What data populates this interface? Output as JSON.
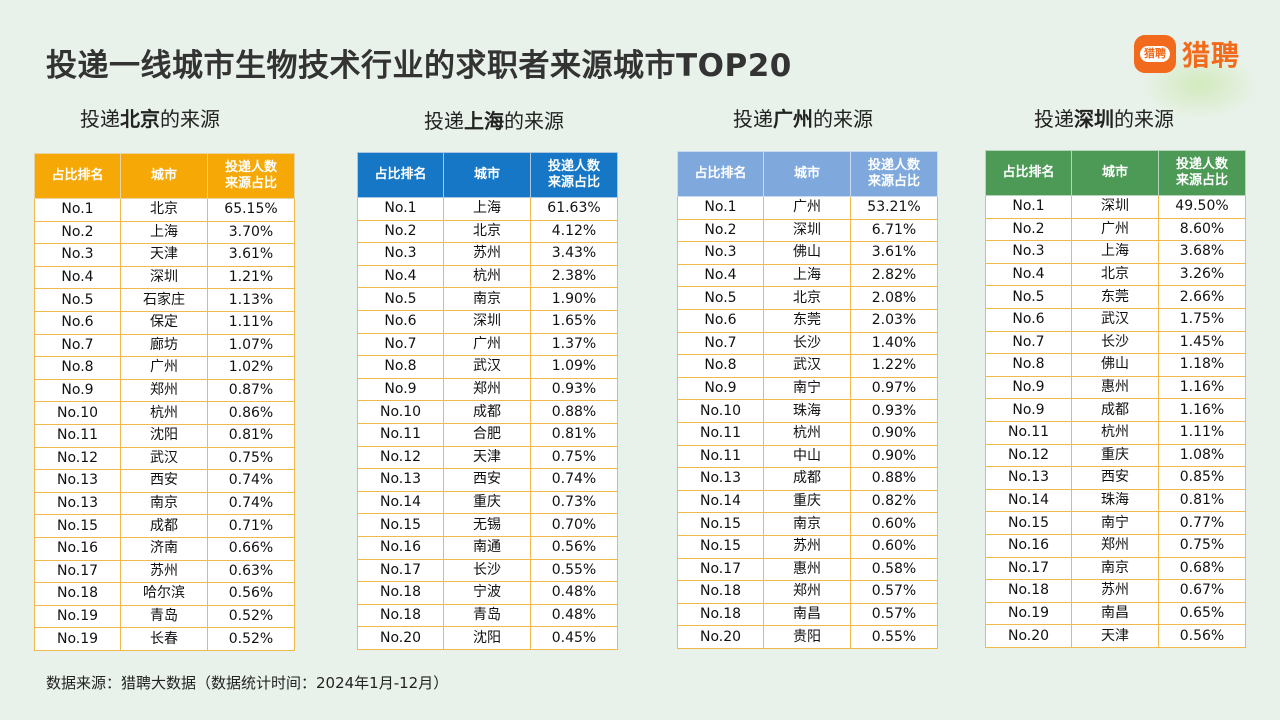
{
  "title": "投递一线城市生物技术行业的求职者来源城市TOP20",
  "logo": {
    "badge": "猎聘",
    "text": "猎聘"
  },
  "headers": {
    "rank": "占比排名",
    "city": "城市",
    "share_line1": "投递人数",
    "share_line2": "来源占比"
  },
  "subtitle_prefix": "投递",
  "subtitle_suffix": "的来源",
  "tables": [
    {
      "city": "北京",
      "rows": [
        [
          "No.1",
          "北京",
          "65.15%"
        ],
        [
          "No.2",
          "上海",
          "3.70%"
        ],
        [
          "No.3",
          "天津",
          "3.61%"
        ],
        [
          "No.4",
          "深圳",
          "1.21%"
        ],
        [
          "No.5",
          "石家庄",
          "1.13%"
        ],
        [
          "No.6",
          "保定",
          "1.11%"
        ],
        [
          "No.7",
          "廊坊",
          "1.07%"
        ],
        [
          "No.8",
          "广州",
          "1.02%"
        ],
        [
          "No.9",
          "郑州",
          "0.87%"
        ],
        [
          "No.10",
          "杭州",
          "0.86%"
        ],
        [
          "No.11",
          "沈阳",
          "0.81%"
        ],
        [
          "No.12",
          "武汉",
          "0.75%"
        ],
        [
          "No.13",
          "西安",
          "0.74%"
        ],
        [
          "No.13",
          "南京",
          "0.74%"
        ],
        [
          "No.15",
          "成都",
          "0.71%"
        ],
        [
          "No.16",
          "济南",
          "0.66%"
        ],
        [
          "No.17",
          "苏州",
          "0.63%"
        ],
        [
          "No.18",
          "哈尔滨",
          "0.56%"
        ],
        [
          "No.19",
          "青岛",
          "0.52%"
        ],
        [
          "No.19",
          "长春",
          "0.52%"
        ]
      ]
    },
    {
      "city": "上海",
      "rows": [
        [
          "No.1",
          "上海",
          "61.63%"
        ],
        [
          "No.2",
          "北京",
          "4.12%"
        ],
        [
          "No.3",
          "苏州",
          "3.43%"
        ],
        [
          "No.4",
          "杭州",
          "2.38%"
        ],
        [
          "No.5",
          "南京",
          "1.90%"
        ],
        [
          "No.6",
          "深圳",
          "1.65%"
        ],
        [
          "No.7",
          "广州",
          "1.37%"
        ],
        [
          "No.8",
          "武汉",
          "1.09%"
        ],
        [
          "No.9",
          "郑州",
          "0.93%"
        ],
        [
          "No.10",
          "成都",
          "0.88%"
        ],
        [
          "No.11",
          "合肥",
          "0.81%"
        ],
        [
          "No.12",
          "天津",
          "0.75%"
        ],
        [
          "No.13",
          "西安",
          "0.74%"
        ],
        [
          "No.14",
          "重庆",
          "0.73%"
        ],
        [
          "No.15",
          "无锡",
          "0.70%"
        ],
        [
          "No.16",
          "南通",
          "0.56%"
        ],
        [
          "No.17",
          "长沙",
          "0.55%"
        ],
        [
          "No.18",
          "宁波",
          "0.48%"
        ],
        [
          "No.18",
          "青岛",
          "0.48%"
        ],
        [
          "No.20",
          "沈阳",
          "0.45%"
        ]
      ]
    },
    {
      "city": "广州",
      "rows": [
        [
          "No.1",
          "广州",
          "53.21%"
        ],
        [
          "No.2",
          "深圳",
          "6.71%"
        ],
        [
          "No.3",
          "佛山",
          "3.61%"
        ],
        [
          "No.4",
          "上海",
          "2.82%"
        ],
        [
          "No.5",
          "北京",
          "2.08%"
        ],
        [
          "No.6",
          "东莞",
          "2.03%"
        ],
        [
          "No.7",
          "长沙",
          "1.40%"
        ],
        [
          "No.8",
          "武汉",
          "1.22%"
        ],
        [
          "No.9",
          "南宁",
          "0.97%"
        ],
        [
          "No.10",
          "珠海",
          "0.93%"
        ],
        [
          "No.11",
          "杭州",
          "0.90%"
        ],
        [
          "No.11",
          "中山",
          "0.90%"
        ],
        [
          "No.13",
          "成都",
          "0.88%"
        ],
        [
          "No.14",
          "重庆",
          "0.82%"
        ],
        [
          "No.15",
          "南京",
          "0.60%"
        ],
        [
          "No.15",
          "苏州",
          "0.60%"
        ],
        [
          "No.17",
          "惠州",
          "0.58%"
        ],
        [
          "No.18",
          "郑州",
          "0.57%"
        ],
        [
          "No.18",
          "南昌",
          "0.57%"
        ],
        [
          "No.20",
          "贵阳",
          "0.55%"
        ]
      ]
    },
    {
      "city": "深圳",
      "rows": [
        [
          "No.1",
          "深圳",
          "49.50%"
        ],
        [
          "No.2",
          "广州",
          "8.60%"
        ],
        [
          "No.3",
          "上海",
          "3.68%"
        ],
        [
          "No.4",
          "北京",
          "3.26%"
        ],
        [
          "No.5",
          "东莞",
          "2.66%"
        ],
        [
          "No.6",
          "武汉",
          "1.75%"
        ],
        [
          "No.7",
          "长沙",
          "1.45%"
        ],
        [
          "No.8",
          "佛山",
          "1.18%"
        ],
        [
          "No.9",
          "惠州",
          "1.16%"
        ],
        [
          "No.9",
          "成都",
          "1.16%"
        ],
        [
          "No.11",
          "杭州",
          "1.11%"
        ],
        [
          "No.12",
          "重庆",
          "1.08%"
        ],
        [
          "No.13",
          "西安",
          "0.85%"
        ],
        [
          "No.14",
          "珠海",
          "0.81%"
        ],
        [
          "No.15",
          "南宁",
          "0.77%"
        ],
        [
          "No.16",
          "郑州",
          "0.75%"
        ],
        [
          "No.17",
          "南京",
          "0.68%"
        ],
        [
          "No.18",
          "苏州",
          "0.67%"
        ],
        [
          "No.19",
          "南昌",
          "0.65%"
        ],
        [
          "No.20",
          "天津",
          "0.56%"
        ]
      ]
    }
  ],
  "footer": "数据来源：猎聘大数据（数据统计时间：2024年1月-12月）"
}
